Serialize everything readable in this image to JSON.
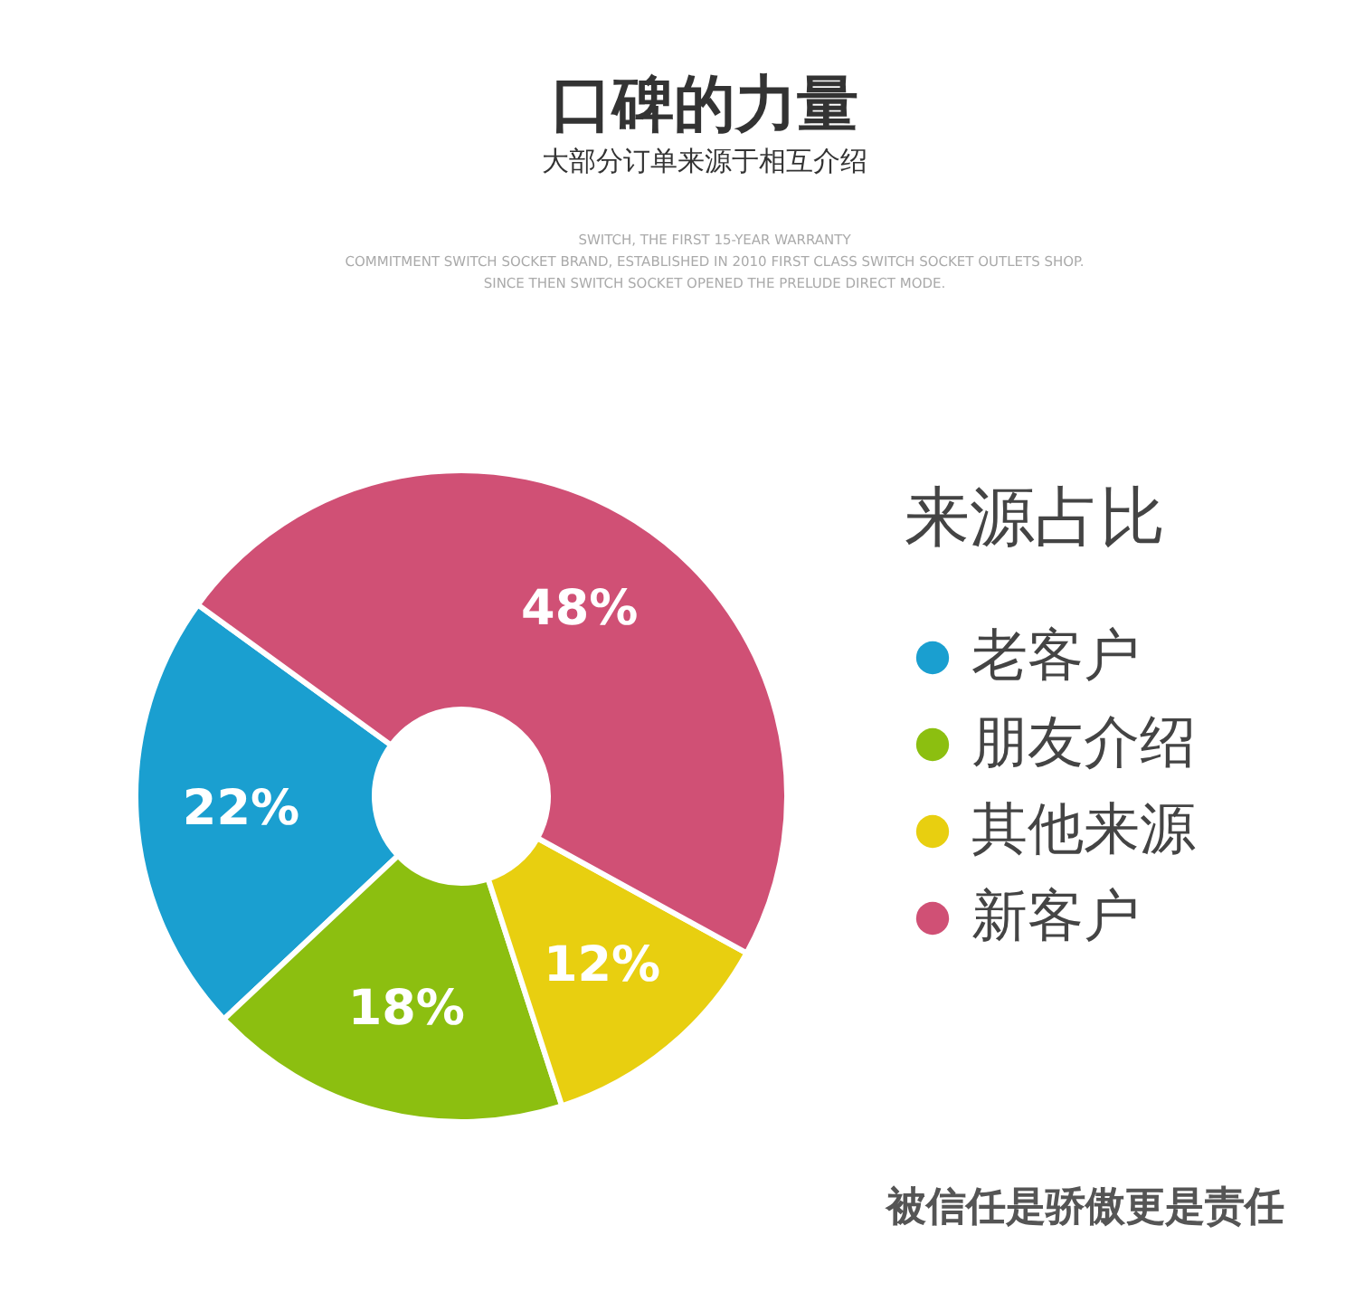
{
  "chart_data": {
    "type": "donut",
    "title": "口碑的力量",
    "subtitle": "大部分订单来源于相互介绍",
    "categories": [
      "老客户",
      "朋友介绍",
      "其他来源",
      "新客户"
    ],
    "values": [
      22,
      18,
      12,
      48
    ],
    "colors": [
      "#1a9fd0",
      "#8cbf10",
      "#e8cf10",
      "#d05075"
    ],
    "value_labels": [
      "22%",
      "18%",
      "12%",
      "48%"
    ],
    "legend": "right",
    "legend_title": "来源占比",
    "annotations": [
      "SWITCH, THE FIRST 15-YEAR WARRANTY",
      "COMMITMENT SWITCH SOCKET BRAND, ESTABLISHED IN 2010 FIRST CLASS SWITCH SOCKET OUTLETS SHOP.",
      "SINCE THEN SWITCH SOCKET OPENED THE PRELUDE DIRECT MODE.",
      "被信任是骄傲更是责任"
    ]
  }
}
